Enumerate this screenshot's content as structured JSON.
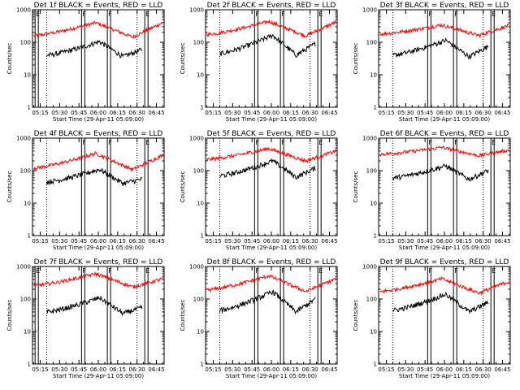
{
  "chart_data": {
    "type": "line",
    "y_scale": "log",
    "ylim": [
      1,
      1000
    ],
    "xlim": [
      "05:09:00",
      "06:51:00"
    ],
    "ylabel": "Counts/sec",
    "xlabel": "Start Time (29-Apr-11 05:09:00)",
    "x_ticks": [
      "05:15",
      "05:30",
      "05:45",
      "06:00",
      "06:15",
      "06:30",
      "06:45"
    ],
    "y_ticks": [
      "1",
      "10",
      "100",
      "1000"
    ],
    "series_colors": {
      "events": "#000000",
      "lld": "#ff0000"
    },
    "panels": [
      {
        "title": "Det 1f BLACK = Events, RED = LLD",
        "markers": [
          "E",
          "F",
          "F",
          "E"
        ],
        "events": {
          "start": 40,
          "peak": 105,
          "end": 60
        },
        "lld": {
          "start": 160,
          "peak": 400,
          "end": 400
        }
      },
      {
        "title": "Det 2f BLACK = Events, RED = LLD",
        "markers": [
          "F",
          "F",
          "E"
        ],
        "events": {
          "start": 45,
          "peak": 165,
          "end": 90
        },
        "lld": {
          "start": 175,
          "peak": 440,
          "end": 420
        }
      },
      {
        "title": "Det 3f BLACK = Events, RED = LLD",
        "markers": [
          "F",
          "F",
          "E"
        ],
        "events": {
          "start": 40,
          "peak": 115,
          "end": 75
        },
        "lld": {
          "start": 180,
          "peak": 340,
          "end": 330
        }
      },
      {
        "title": "Det 4f BLACK = Events, RED = LLD",
        "markers": [
          "F",
          "F",
          "E"
        ],
        "events": {
          "start": 45,
          "peak": 110,
          "end": 55
        },
        "lld": {
          "start": 120,
          "peak": 340,
          "end": 300
        }
      },
      {
        "title": "Det 5f BLACK = Events, RED = LLD",
        "markers": [
          "F",
          "F",
          "E"
        ],
        "events": {
          "start": 70,
          "peak": 200,
          "end": 120
        },
        "lld": {
          "start": 220,
          "peak": 480,
          "end": 400
        }
      },
      {
        "title": "Det 6f BLACK = Events, RED = LLD",
        "markers": [
          "F",
          "F",
          "E"
        ],
        "events": {
          "start": 60,
          "peak": 140,
          "end": 100
        },
        "lld": {
          "start": 320,
          "peak": 520,
          "end": 430
        }
      },
      {
        "title": "Det 7f BLACK = Events, RED = LLD",
        "markers": [
          "E",
          "F",
          "F",
          "E"
        ],
        "events": {
          "start": 40,
          "peak": 110,
          "end": 55
        },
        "lld": {
          "start": 260,
          "peak": 600,
          "end": 420
        }
      },
      {
        "title": "Det 8f BLACK = Events, RED = LLD",
        "markers": [
          "F",
          "F",
          "E"
        ],
        "events": {
          "start": 45,
          "peak": 170,
          "end": 100
        },
        "lld": {
          "start": 190,
          "peak": 520,
          "end": 420
        }
      },
      {
        "title": "Det 9f BLACK = Events, RED = LLD",
        "markers": [
          "F",
          "F",
          "E"
        ],
        "events": {
          "start": 45,
          "peak": 140,
          "end": 80
        },
        "lld": {
          "start": 170,
          "peak": 420,
          "end": 350
        }
      }
    ]
  }
}
